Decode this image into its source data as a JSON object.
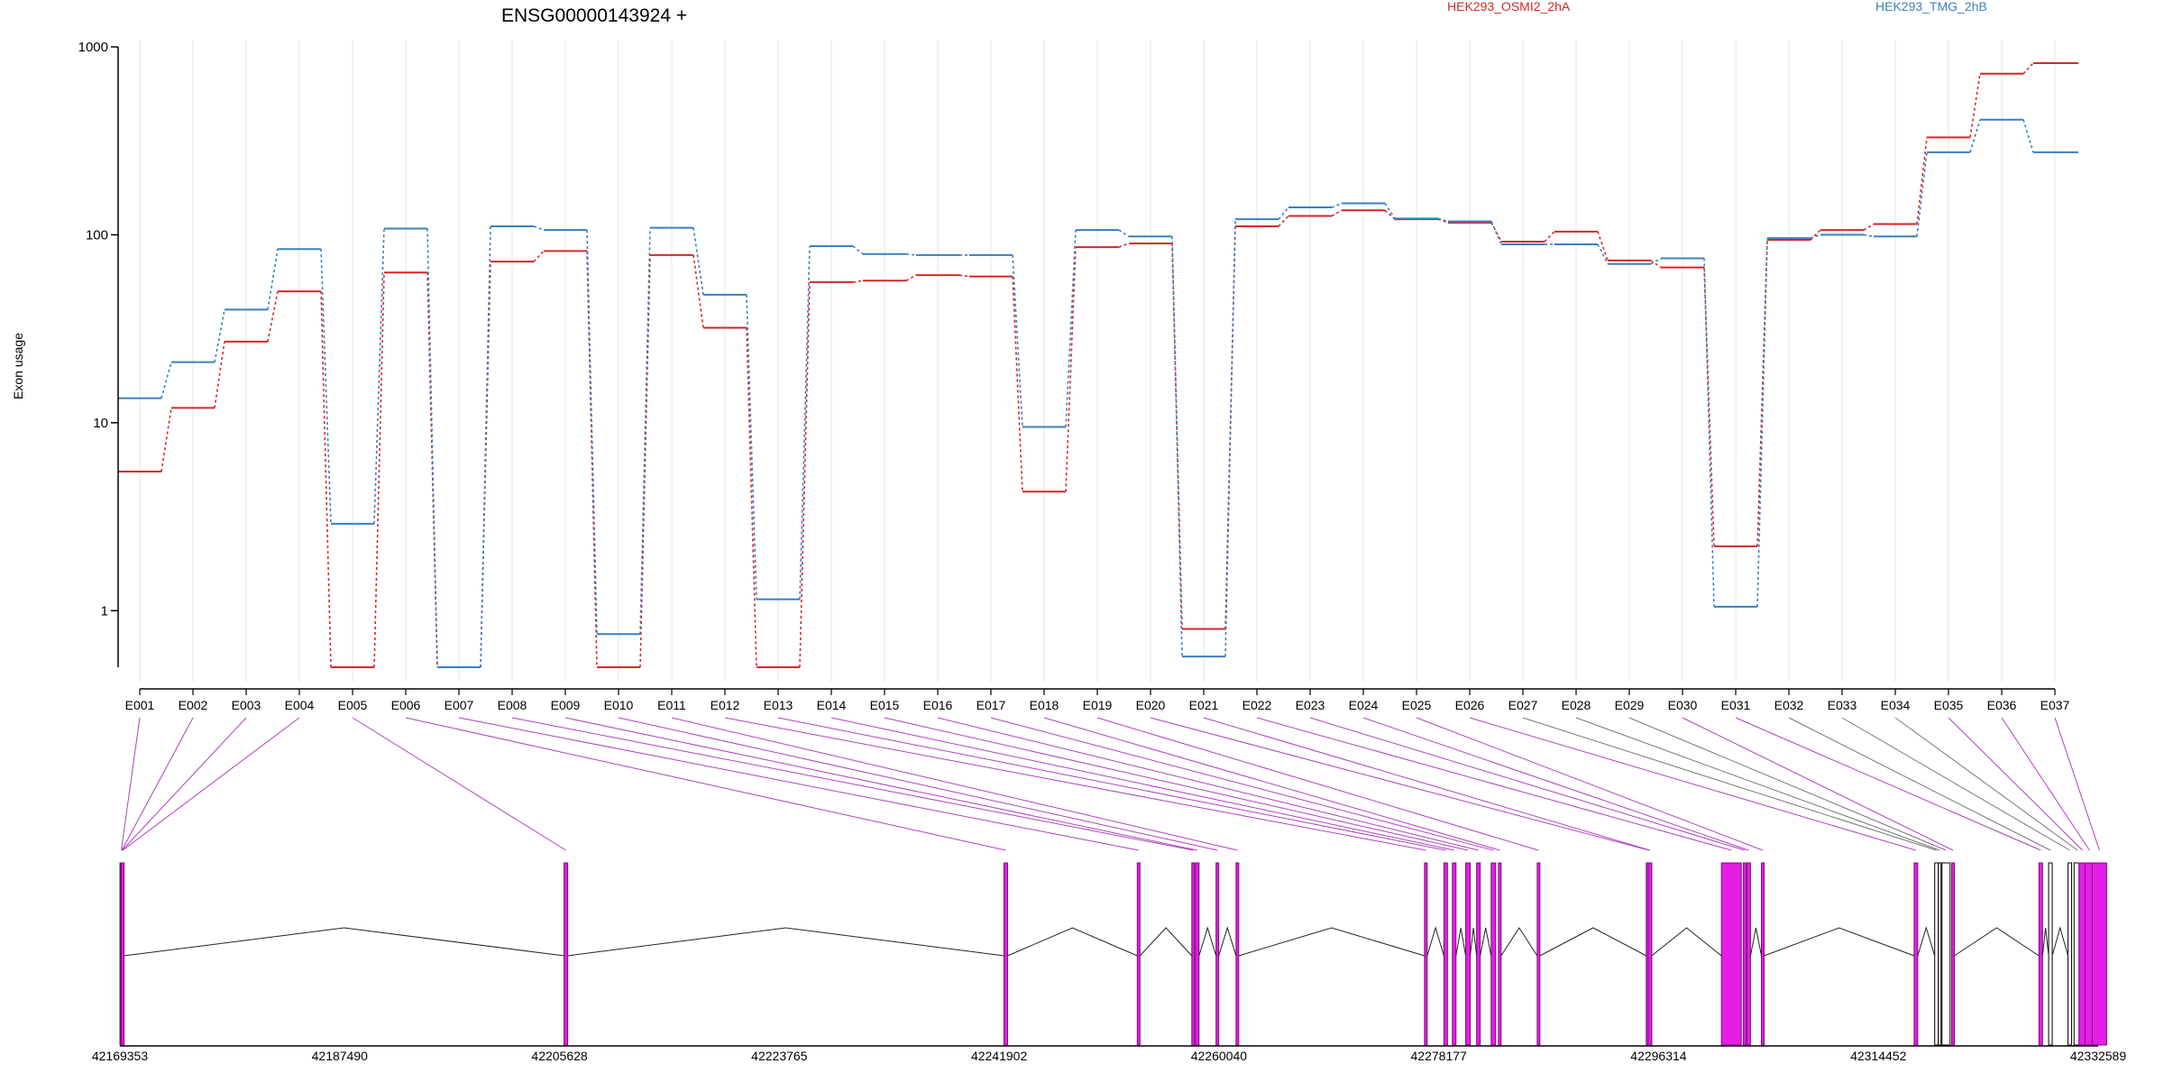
{
  "chart_data": {
    "type": "line",
    "title": "ENSG00000143924 +",
    "xlabel": "",
    "ylabel": "Exon usage",
    "y_scale": "log",
    "ylim": [
      0.5,
      1000
    ],
    "y_ticks": [
      {
        "value": 1000,
        "label": "1000"
      },
      {
        "value": 100,
        "label": "100"
      },
      {
        "value": 10,
        "label": "10"
      },
      {
        "value": 1,
        "label": "1"
      }
    ],
    "categories": [
      "E001",
      "E002",
      "E003",
      "E004",
      "E005",
      "E006",
      "E007",
      "E008",
      "E009",
      "E010",
      "E011",
      "E012",
      "E013",
      "E014",
      "E015",
      "E016",
      "E017",
      "E018",
      "E019",
      "E020",
      "E021",
      "E022",
      "E023",
      "E024",
      "E025",
      "E026",
      "E027",
      "E028",
      "E029",
      "E030",
      "E031",
      "E032",
      "E033",
      "E034",
      "E035",
      "E036",
      "E037"
    ],
    "series": [
      {
        "name": "HEK293_OSMI2_2hA",
        "color": "#d62728",
        "values": [
          5.5,
          12,
          27,
          50,
          0.5,
          63,
          0.5,
          72,
          82,
          0.5,
          78,
          32,
          0.5,
          56,
          57,
          61,
          60,
          4.3,
          86,
          90,
          0.8,
          111,
          126,
          135,
          121,
          116,
          92,
          104,
          73,
          67,
          2.2,
          94,
          106,
          114,
          330,
          720,
          820
        ]
      },
      {
        "name": "HEK293_TMG_2hB",
        "color": "#3a7fc1",
        "values": [
          13.5,
          21,
          40,
          84,
          2.9,
          108,
          0.5,
          111,
          106,
          0.75,
          109,
          48,
          1.15,
          87,
          79,
          78,
          78,
          9.5,
          106,
          98,
          0.57,
          121,
          140,
          147,
          122,
          118,
          89,
          89,
          70,
          75,
          1.05,
          96,
          100,
          98,
          275,
          410,
          275
        ]
      }
    ],
    "legend_placement": "top-right",
    "grid": "vertical-only",
    "gene_model": {
      "coord_ticks": [
        "42169353",
        "42187490",
        "42205628",
        "42223765",
        "42241902",
        "42260040",
        "42278177",
        "42296314",
        "42314452",
        "42332589"
      ],
      "coord_start": 42169353,
      "coord_end": 42332589,
      "exon_coords": [
        42169353,
        42169400,
        42169430,
        42169470,
        42206000,
        42242300,
        42253300,
        42257800,
        42258100,
        42259800,
        42261450,
        42277000,
        42278600,
        42279300,
        42280400,
        42281300,
        42282500,
        42283100,
        42286300,
        42295300,
        42295450,
        42301500,
        42303300,
        42303600,
        42304800,
        42317400,
        42319100,
        42319400,
        42319700,
        42320500,
        42327700,
        42328500,
        42330100,
        42330600,
        42331000,
        42331500,
        42332100
      ],
      "highlighted_exons": [
        "E001",
        "E002",
        "E003",
        "E004",
        "E005",
        "E006",
        "E007",
        "E008",
        "E009",
        "E010",
        "E011",
        "E012",
        "E013",
        "E014",
        "E015",
        "E016",
        "E017",
        "E018",
        "E019",
        "E020",
        "E021",
        "E022",
        "E023",
        "E024",
        "E025",
        "E026",
        "E030",
        "E031",
        "E035",
        "E036",
        "E037"
      ]
    }
  }
}
